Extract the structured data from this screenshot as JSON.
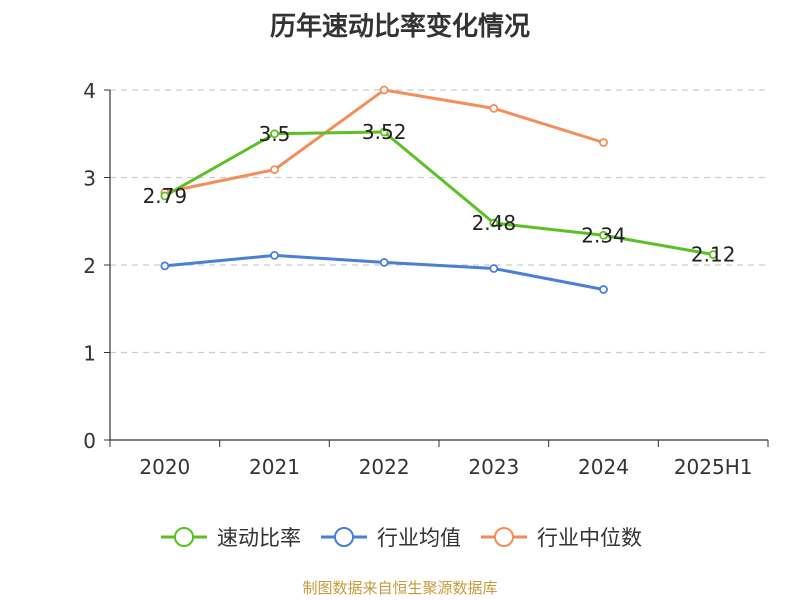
{
  "title": "历年速动比率变化情况",
  "footer": "制图数据来自恒生聚源数据库",
  "chart_data": {
    "type": "line",
    "categories": [
      "2020",
      "2021",
      "2022",
      "2023",
      "2024",
      "2025H1"
    ],
    "ylim": [
      0,
      4
    ],
    "y_ticks": [
      "0",
      "1",
      "2",
      "3",
      "4"
    ],
    "grid": true,
    "legend_position": "bottom",
    "series": [
      {
        "name": "速动比率",
        "color": "#5cbf24",
        "values": [
          2.79,
          3.5,
          3.52,
          2.48,
          2.34,
          2.12
        ],
        "labels": [
          "2.79",
          "3.5",
          "3.52",
          "2.48",
          "2.34",
          "2.12"
        ]
      },
      {
        "name": "行业均值",
        "color": "#4a7fd8",
        "values": [
          1.99,
          2.11,
          2.03,
          1.96,
          1.72,
          null
        ]
      },
      {
        "name": "行业中位数",
        "color": "#f38e5b",
        "values": [
          2.83,
          3.09,
          4.0,
          3.79,
          3.4,
          null
        ]
      }
    ]
  }
}
